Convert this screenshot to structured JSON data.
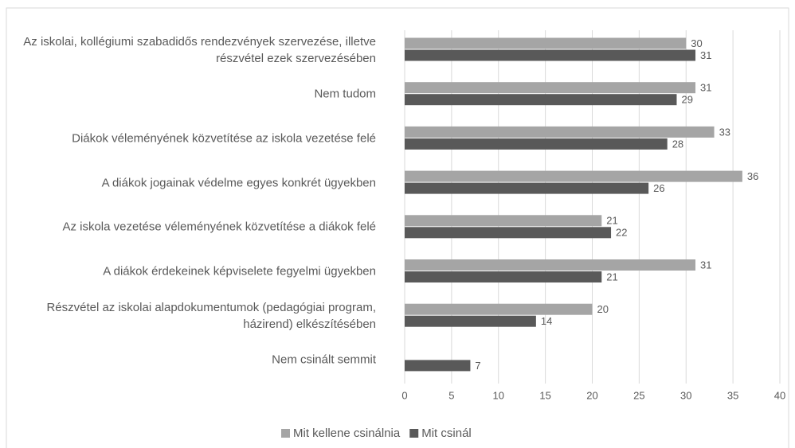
{
  "chart_data": {
    "type": "bar",
    "orientation": "horizontal",
    "categories": [
      "Az iskolai, kollégiumi szabadidős rendezvények szervezése, illetve részvétel ezek szervezésében",
      "Nem tudom",
      "Diákok véleményének közvetítése az iskola vezetése felé",
      "A diákok jogainak védelme egyes konkrét ügyekben",
      "Az iskola vezetése véleményének közvetítése a diákok felé",
      "A diákok érdekeinek képviselete fegyelmi ügyekben",
      "Részvétel az iskolai alapdokumentumok (pedagógiai program, házirend) elkészítésében",
      "Nem csinált semmit"
    ],
    "series": [
      {
        "name": "Mit kellene csinálnia",
        "color": "#a5a5a5",
        "values": [
          30,
          31,
          33,
          36,
          21,
          31,
          20,
          null
        ]
      },
      {
        "name": "Mit csinál",
        "color": "#595959",
        "values": [
          31,
          29,
          28,
          26,
          22,
          21,
          14,
          7
        ]
      }
    ],
    "xlim": [
      0,
      40
    ],
    "xticks": [
      0,
      5,
      10,
      15,
      20,
      25,
      30,
      35,
      40
    ],
    "grid": true,
    "legend": "bottom"
  }
}
